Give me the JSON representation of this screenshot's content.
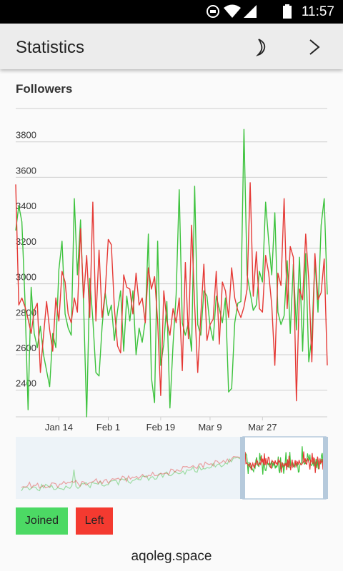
{
  "status_bar": {
    "time": "11:57",
    "icons": [
      "sync-icon",
      "wifi-icon",
      "signal-icon",
      "battery-icon"
    ]
  },
  "app_bar": {
    "title": "Statistics",
    "night_mode_icon": "moon-icon",
    "next_icon": "chevron-right-icon"
  },
  "chart": {
    "title": "Followers"
  },
  "chart_data": {
    "type": "line",
    "title": "Followers",
    "x_tick_labels": [
      "Jan 14",
      "Feb 1",
      "Feb 19",
      "Mar 9",
      "Mar 27"
    ],
    "y_ticks": [
      2400,
      2600,
      2800,
      3000,
      3200,
      3400,
      3600,
      3800
    ],
    "y_tick_labels": [
      "2400",
      "2600",
      "2800",
      "3000",
      "3200",
      "3400",
      "3600",
      "3800"
    ],
    "ylim": [
      2250,
      4000
    ],
    "grid": true,
    "series": [
      {
        "name": "Joined",
        "color": "#3cc23c",
        "values": [
          3300,
          3440,
          3350,
          2900,
          2290,
          2980,
          2720,
          2640,
          2760,
          2600,
          2510,
          2420,
          2720,
          2640,
          3080,
          3240,
          2830,
          2750,
          2710,
          3480,
          3050,
          3360,
          2880,
          2250,
          3030,
          2800,
          2500,
          2480,
          2760,
          2950,
          2820,
          2880,
          2680,
          2850,
          2960,
          2620,
          2930,
          2790,
          2960,
          2600,
          2750,
          2670,
          2790,
          3280,
          2470,
          2330,
          3240,
          2540,
          2660,
          2900,
          2300,
          2660,
          2940,
          3530,
          2780,
          2710,
          2780,
          2620,
          3550,
          2770,
          2710,
          2960,
          2930,
          2760,
          2680,
          2930,
          2860,
          2780,
          2920,
          2390,
          2410,
          2780,
          2890,
          2900,
          3870,
          3050,
          2950,
          2850,
          2880,
          3070,
          3010,
          3460,
          3240,
          3050,
          3400,
          2840,
          2770,
          2820,
          3130,
          2720,
          3110,
          2740,
          3150,
          2620,
          3170,
          2560,
          2700,
          3140,
          2840,
          3330,
          3480,
          2940
        ]
      },
      {
        "name": "Left",
        "color": "#e53935",
        "values": [
          3560,
          2880,
          2920,
          2870,
          2800,
          2720,
          2850,
          2890,
          2500,
          2710,
          2900,
          2740,
          2620,
          2920,
          2790,
          3070,
          3010,
          2830,
          2780,
          2920,
          2840,
          3310,
          2920,
          3160,
          2810,
          3460,
          2790,
          3190,
          2810,
          2950,
          3250,
          3220,
          2860,
          2650,
          2610,
          3050,
          2980,
          2970,
          2830,
          3060,
          2880,
          2920,
          2780,
          3090,
          2970,
          3040,
          2790,
          2370,
          2960,
          2790,
          2710,
          2860,
          2780,
          2920,
          2510,
          3120,
          2690,
          3330,
          2880,
          2500,
          2820,
          3110,
          2680,
          2770,
          2800,
          3070,
          2660,
          3010,
          2960,
          2810,
          3090,
          2920,
          2850,
          2810,
          2870,
          2970,
          3570,
          2930,
          3180,
          2860,
          2840,
          3160,
          3060,
          2880,
          2540,
          3060,
          2990,
          3480,
          2860,
          3210,
          3150,
          2340,
          2970,
          2910,
          3280,
          3020,
          2560,
          3170,
          2910,
          2950,
          3140,
          2540
        ]
      }
    ]
  },
  "legend": {
    "joined_label": "Joined",
    "left_label": "Left"
  },
  "footer": {
    "text": "aqoleg.space"
  }
}
